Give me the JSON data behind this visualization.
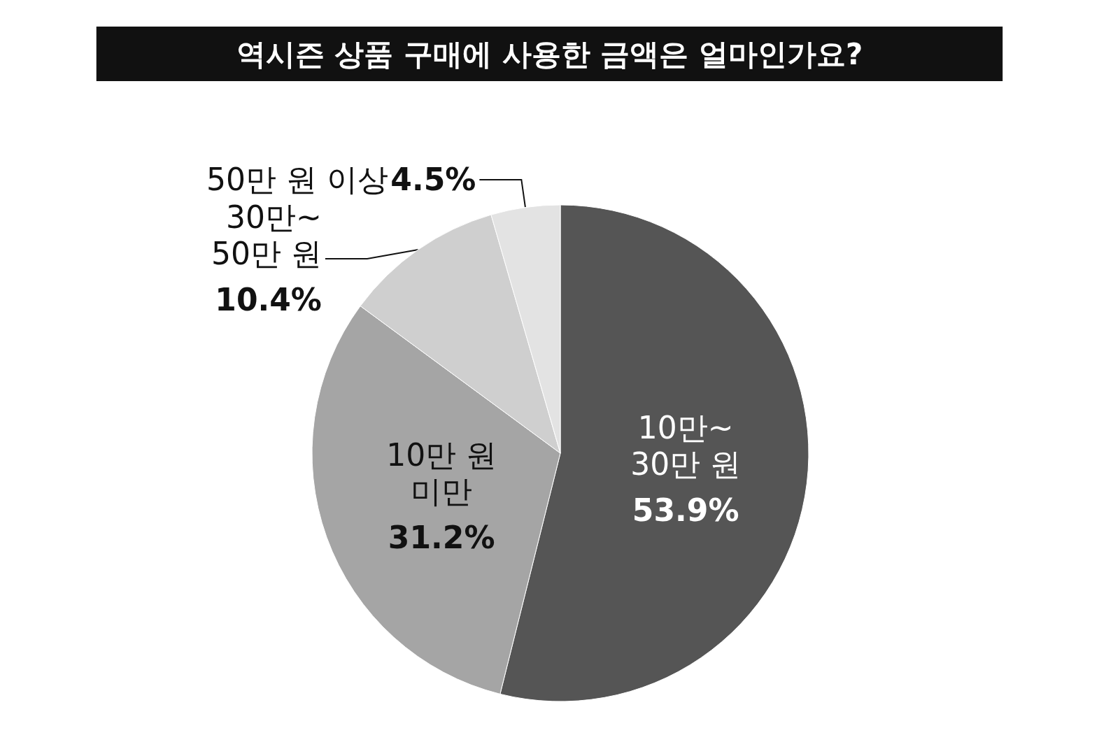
{
  "chart_data": {
    "type": "pie",
    "title": "역시즌 상품 구매에 사용한 금액은 얼마인가요?",
    "categories": [
      "10만~\n30만 원",
      "10만 원\n미만",
      "30만~\n50만 원",
      "50만 원 이상"
    ],
    "values": [
      53.9,
      31.2,
      10.4,
      4.5
    ],
    "value_labels": [
      "53.9%",
      "31.2%",
      "10.4%",
      "4.5%"
    ],
    "colors": [
      "#555555",
      "#a5a5a5",
      "#cfcfcf",
      "#e3e3e3"
    ],
    "legend": false
  }
}
